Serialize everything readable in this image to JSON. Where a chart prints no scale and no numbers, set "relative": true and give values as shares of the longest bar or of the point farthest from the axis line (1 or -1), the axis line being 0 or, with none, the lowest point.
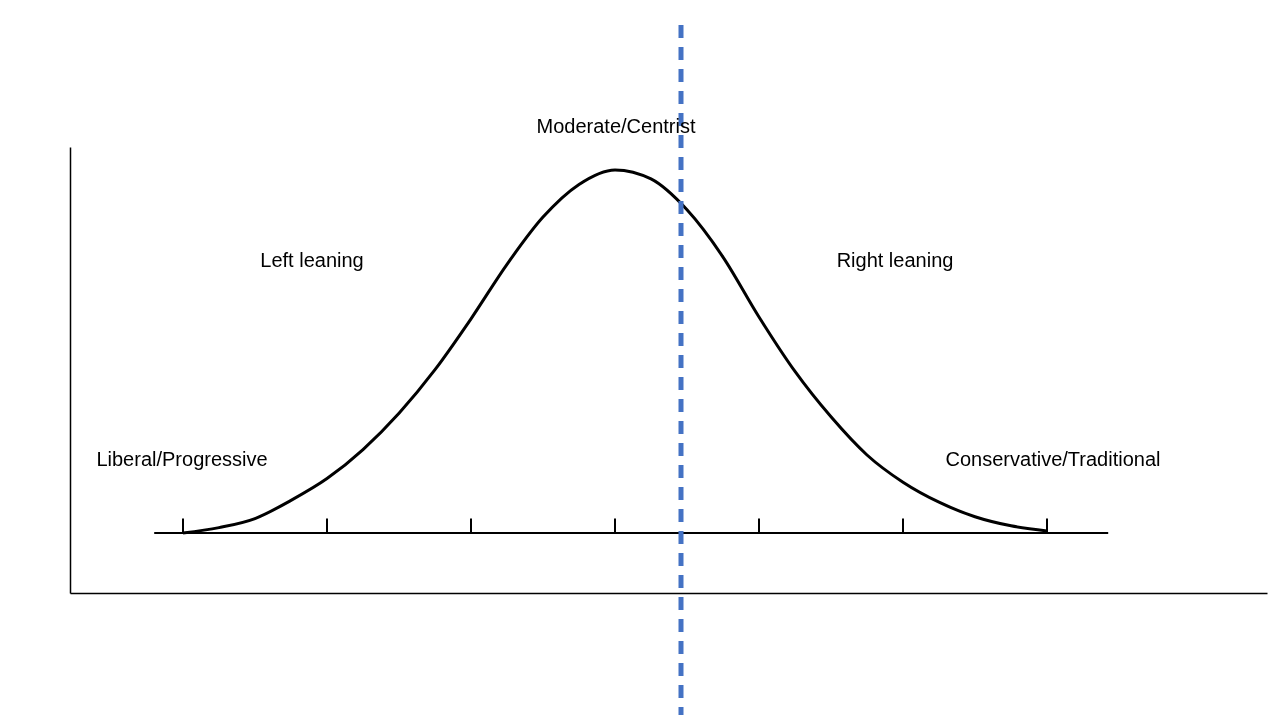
{
  "chart_data": {
    "type": "line",
    "relative": true,
    "categories": [
      null,
      null,
      null,
      null,
      null,
      null,
      null,
      null,
      null,
      null,
      null,
      null,
      null,
      null,
      null,
      null,
      null,
      null,
      null,
      null,
      null,
      null,
      null,
      null,
      null
    ],
    "series": [
      {
        "color": "#000000",
        "values": [
          0,
          0.015,
          0.04,
          0.09,
          0.15,
          0.23,
          0.33,
          0.45,
          0.59,
          0.74,
          0.87,
          0.96,
          1,
          0.975,
          0.89,
          0.76,
          0.595,
          0.445,
          0.32,
          0.215,
          0.14,
          0.085,
          0.045,
          0.02,
          0.006
        ]
      }
    ],
    "tick_labels": false,
    "line_style": "solid",
    "annotations": [
      "Moderate/Centrist",
      "Left leaning",
      "Right leaning",
      "Liberal/Progressive",
      "Conservative/Traditional"
    ]
  }
}
